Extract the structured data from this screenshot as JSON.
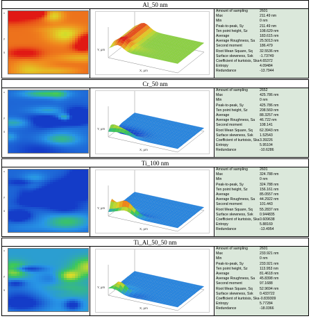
{
  "stat_labels": [
    "Amount of sampling",
    "Max",
    "Min",
    "Peak-to-peak, Sy",
    "Ten point height, Sz",
    "Average",
    "Average Roughness, Sa",
    "Second moment",
    "Root Mean Square, Sq",
    "Surface skewness, Ssk",
    "Coefficient of kurtoisis, Ska",
    "Entropy",
    "Redundance"
  ],
  "map_axis_ticks": [
    "x",
    "y",
    "5"
  ],
  "surface_axis_labels": {
    "x": "X, μm",
    "y": "Y, μm"
  },
  "samples": [
    {
      "title": "Al_50 nm",
      "colormap": "red-dominant",
      "accent": "#e8201a",
      "stats": [
        "2601",
        "211.49 nm",
        "0 nm",
        "211.49 nm",
        "108.629 nm",
        "183.615 nm",
        "25.5013 nm",
        "186.479",
        "32.5536 nm",
        "-1.73749",
        "4.65372",
        "4.09484",
        "-13.7944"
      ]
    },
    {
      "title": "Cr_50 nm",
      "colormap": "blue-dominant",
      "accent": "#1f5fd6",
      "stats": [
        "2652",
        "425.786 nm",
        "0 nm",
        "425.786 nm",
        "208.569 nm",
        "88.3257 nm",
        "46.722 nm",
        "108.141",
        "62.3943 nm",
        "1.52543",
        "3.39226",
        "5.95104",
        "-10.6286"
      ]
    },
    {
      "title": "Ti_100 nm",
      "colormap": "blue-dominant",
      "accent": "#1f5fd6",
      "stats": [
        "2601",
        "324.788 nm",
        "0 nm",
        "324.788 nm",
        "156.161 nm",
        "85.0557 nm",
        "44.2922 nm",
        "101.443",
        "55.2837 nm",
        "0.944835",
        "0.609638",
        "5.88169",
        "-13.4954"
      ]
    },
    {
      "title": "Ti_Al_50_50 nm",
      "colormap": "blue-green",
      "accent": "#22a34a",
      "stats": [
        "2601",
        "233.921 nm",
        "0 nm",
        "233.921 nm",
        "113.953 nm",
        "81.4618 nm",
        "45.8398 nm",
        "97.1688",
        "52.9694 nm",
        "0.433722",
        "-0.839309",
        "5.77284",
        "-18.0366"
      ]
    }
  ]
}
